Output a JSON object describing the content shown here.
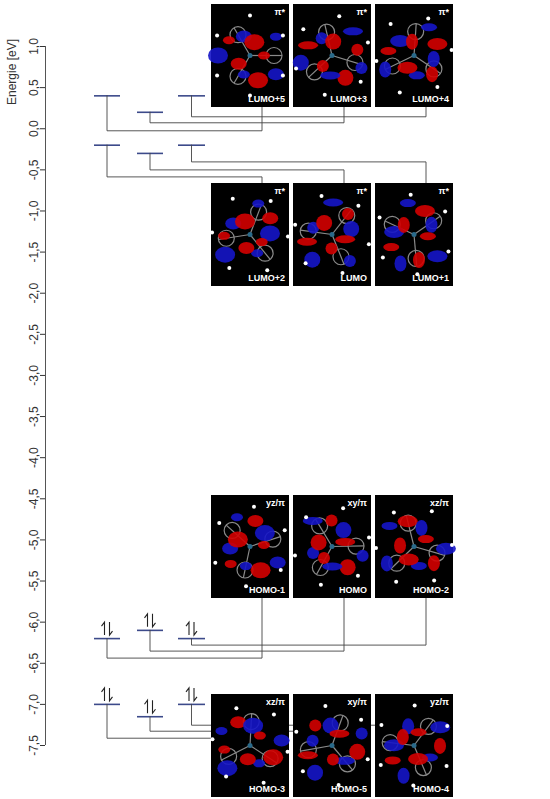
{
  "chart_data": {
    "type": "energy_level",
    "y_label": "Energie [eV]",
    "ylim": [
      -7.5,
      1.0
    ],
    "yticks": [
      {
        "value": 1.0,
        "label": "1,0"
      },
      {
        "value": 0.5,
        "label": "0,5"
      },
      {
        "value": 0.0,
        "label": "0,0"
      },
      {
        "value": -0.5,
        "label": "-0,5"
      },
      {
        "value": -1.0,
        "label": "-1,0"
      },
      {
        "value": -1.5,
        "label": "-1,5"
      },
      {
        "value": -2.0,
        "label": "-2,0"
      },
      {
        "value": -2.5,
        "label": "-2,5"
      },
      {
        "value": -3.0,
        "label": "-3,0"
      },
      {
        "value": -3.5,
        "label": "-3,5"
      },
      {
        "value": -4.0,
        "label": "-4,0"
      },
      {
        "value": -4.5,
        "label": "-4,5"
      },
      {
        "value": -5.0,
        "label": "-5,0"
      },
      {
        "value": -5.5,
        "label": "-5,5"
      },
      {
        "value": -6.0,
        "label": "-6,0"
      },
      {
        "value": -6.5,
        "label": "-6,5"
      },
      {
        "value": -7.0,
        "label": "-7,0"
      },
      {
        "value": -7.5,
        "label": "-7,5"
      }
    ],
    "color": "#3c4a8a",
    "levels": [
      {
        "name": "LUMO+5",
        "orbital": "π*",
        "energy": 0.4,
        "electrons": 0
      },
      {
        "name": "LUMO+3",
        "orbital": "π*",
        "energy": 0.2,
        "electrons": 0
      },
      {
        "name": "LUMO+4",
        "orbital": "π*",
        "energy": 0.4,
        "electrons": 0
      },
      {
        "name": "LUMO+2",
        "orbital": "π*",
        "energy": -0.2,
        "electrons": 0
      },
      {
        "name": "LUMO",
        "orbital": "π*",
        "energy": -0.3,
        "electrons": 0
      },
      {
        "name": "LUMO+1",
        "orbital": "π*",
        "energy": -0.2,
        "electrons": 0
      },
      {
        "name": "HOMO-1",
        "orbital": "yz/π",
        "energy": -6.2,
        "electrons": 2
      },
      {
        "name": "HOMO",
        "orbital": "xy/π",
        "energy": -6.1,
        "electrons": 2
      },
      {
        "name": "HOMO-2",
        "orbital": "xz/π",
        "energy": -6.2,
        "electrons": 2
      },
      {
        "name": "HOMO-3",
        "orbital": "xz/π",
        "energy": -7.0,
        "electrons": 2
      },
      {
        "name": "HOMO-5",
        "orbital": "xy/π",
        "energy": -7.15,
        "electrons": 2
      },
      {
        "name": "HOMO-4",
        "orbital": "yz/π",
        "energy": -7.0,
        "electrons": 2
      }
    ]
  }
}
